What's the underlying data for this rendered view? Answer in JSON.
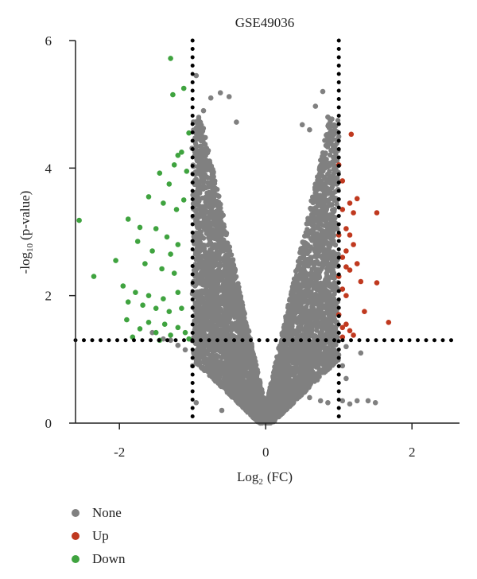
{
  "chart_data": {
    "type": "scatter",
    "title": "GSE49036",
    "xlabel": "Log",
    "xlabel_sub": "2",
    "xlabel_rest": "(FC)",
    "ylabel": "-log",
    "ylabel_sub": "10",
    "ylabel_rest": "(p-value)",
    "xlim": [
      -2.6,
      2.65
    ],
    "ylim": [
      0,
      6
    ],
    "x_ticks": [
      -2,
      0,
      2
    ],
    "y_ticks": [
      0,
      2,
      4,
      6
    ],
    "x_tick_labels": [
      "-2",
      "0",
      "2"
    ],
    "y_tick_labels": [
      "0",
      "2",
      "4",
      "6"
    ],
    "thresholds": {
      "log2fc": [
        -1,
        1
      ],
      "neg_log10_p": 1.3
    },
    "threshold_style": "dotted black",
    "legend_position": "bottom-left",
    "grid": false,
    "colors": {
      "None": "#808080",
      "Up": "#c0391f",
      "Down": "#3fa33f"
    },
    "series": [
      {
        "name": "None",
        "color": "#808080",
        "points": [
          [
            -0.95,
            5.45
          ],
          [
            -0.62,
            5.18
          ],
          [
            -0.5,
            5.12
          ],
          [
            -0.75,
            5.1
          ],
          [
            0.78,
            5.2
          ],
          [
            0.68,
            4.97
          ],
          [
            -0.4,
            4.72
          ],
          [
            0.5,
            4.68
          ],
          [
            0.6,
            4.6
          ],
          [
            -0.85,
            4.9
          ],
          [
            0.85,
            4.8
          ],
          [
            0.95,
            4.55
          ],
          [
            -0.95,
            4.45
          ],
          [
            0.95,
            4.3
          ],
          [
            -0.2,
            1.0
          ],
          [
            0.2,
            1.0
          ],
          [
            0.6,
            0.4
          ],
          [
            0.75,
            0.35
          ],
          [
            0.85,
            0.32
          ],
          [
            1.05,
            0.35
          ],
          [
            1.15,
            0.3
          ],
          [
            1.25,
            0.35
          ],
          [
            1.4,
            0.35
          ],
          [
            1.5,
            0.32
          ],
          [
            -0.95,
            0.32
          ],
          [
            -0.6,
            0.2
          ],
          [
            -1.1,
            1.15
          ],
          [
            -1.2,
            1.22
          ],
          [
            -1.3,
            1.3
          ],
          [
            -1.4,
            1.32
          ],
          [
            -1.55,
            1.42
          ],
          [
            1.1,
            1.2
          ],
          [
            1.3,
            1.1
          ],
          [
            1.05,
            0.9
          ],
          [
            1.1,
            0.7
          ],
          [
            -1.0,
            0.9
          ]
        ]
      },
      {
        "name": "Up",
        "color": "#c0391f",
        "points": [
          [
            1.17,
            4.53
          ],
          [
            1.0,
            4.05
          ],
          [
            1.05,
            3.8
          ],
          [
            1.25,
            3.52
          ],
          [
            1.15,
            3.45
          ],
          [
            1.52,
            3.3
          ],
          [
            1.2,
            3.3
          ],
          [
            1.05,
            3.35
          ],
          [
            1.1,
            3.05
          ],
          [
            1.0,
            2.95
          ],
          [
            1.15,
            2.95
          ],
          [
            1.2,
            2.8
          ],
          [
            1.1,
            2.7
          ],
          [
            1.05,
            2.6
          ],
          [
            1.25,
            2.5
          ],
          [
            1.1,
            2.45
          ],
          [
            1.15,
            2.4
          ],
          [
            1.0,
            2.3
          ],
          [
            1.3,
            2.22
          ],
          [
            1.52,
            2.2
          ],
          [
            1.05,
            2.1
          ],
          [
            1.1,
            2.0
          ],
          [
            1.35,
            1.75
          ],
          [
            1.0,
            1.7
          ],
          [
            1.1,
            1.55
          ],
          [
            1.68,
            1.58
          ],
          [
            1.05,
            1.5
          ],
          [
            1.15,
            1.45
          ],
          [
            1.2,
            1.38
          ],
          [
            1.05,
            1.35
          ]
        ]
      },
      {
        "name": "Down",
        "color": "#3fa33f",
        "points": [
          [
            -1.3,
            5.72
          ],
          [
            -1.27,
            5.15
          ],
          [
            -1.12,
            5.25
          ],
          [
            -1.05,
            4.55
          ],
          [
            -1.15,
            4.25
          ],
          [
            -1.2,
            4.2
          ],
          [
            -1.25,
            4.05
          ],
          [
            -1.08,
            3.95
          ],
          [
            -1.45,
            3.92
          ],
          [
            -1.32,
            3.75
          ],
          [
            -1.6,
            3.55
          ],
          [
            -1.4,
            3.45
          ],
          [
            -1.22,
            3.35
          ],
          [
            -1.12,
            3.5
          ],
          [
            -2.55,
            3.18
          ],
          [
            -1.88,
            3.2
          ],
          [
            -1.72,
            3.07
          ],
          [
            -1.5,
            3.05
          ],
          [
            -1.35,
            2.92
          ],
          [
            -1.75,
            2.85
          ],
          [
            -1.55,
            2.7
          ],
          [
            -1.3,
            2.65
          ],
          [
            -1.2,
            2.8
          ],
          [
            -2.05,
            2.55
          ],
          [
            -1.65,
            2.5
          ],
          [
            -1.42,
            2.42
          ],
          [
            -1.25,
            2.35
          ],
          [
            -2.35,
            2.3
          ],
          [
            -1.95,
            2.15
          ],
          [
            -1.78,
            2.05
          ],
          [
            -1.6,
            2.0
          ],
          [
            -1.4,
            1.95
          ],
          [
            -1.2,
            2.05
          ],
          [
            -1.88,
            1.9
          ],
          [
            -1.68,
            1.85
          ],
          [
            -1.5,
            1.8
          ],
          [
            -1.32,
            1.75
          ],
          [
            -1.15,
            1.8
          ],
          [
            -1.9,
            1.62
          ],
          [
            -1.6,
            1.58
          ],
          [
            -1.38,
            1.55
          ],
          [
            -1.2,
            1.5
          ],
          [
            -1.72,
            1.48
          ],
          [
            -1.5,
            1.42
          ],
          [
            -1.3,
            1.38
          ],
          [
            -1.1,
            1.42
          ],
          [
            -1.05,
            1.32
          ],
          [
            -1.82,
            1.35
          ],
          [
            -1.45,
            1.3
          ]
        ]
      }
    ]
  },
  "legend": {
    "items": [
      {
        "label": "None",
        "color": "#808080"
      },
      {
        "label": "Up",
        "color": "#c0391f"
      },
      {
        "label": "Down",
        "color": "#3fa33f"
      }
    ]
  }
}
